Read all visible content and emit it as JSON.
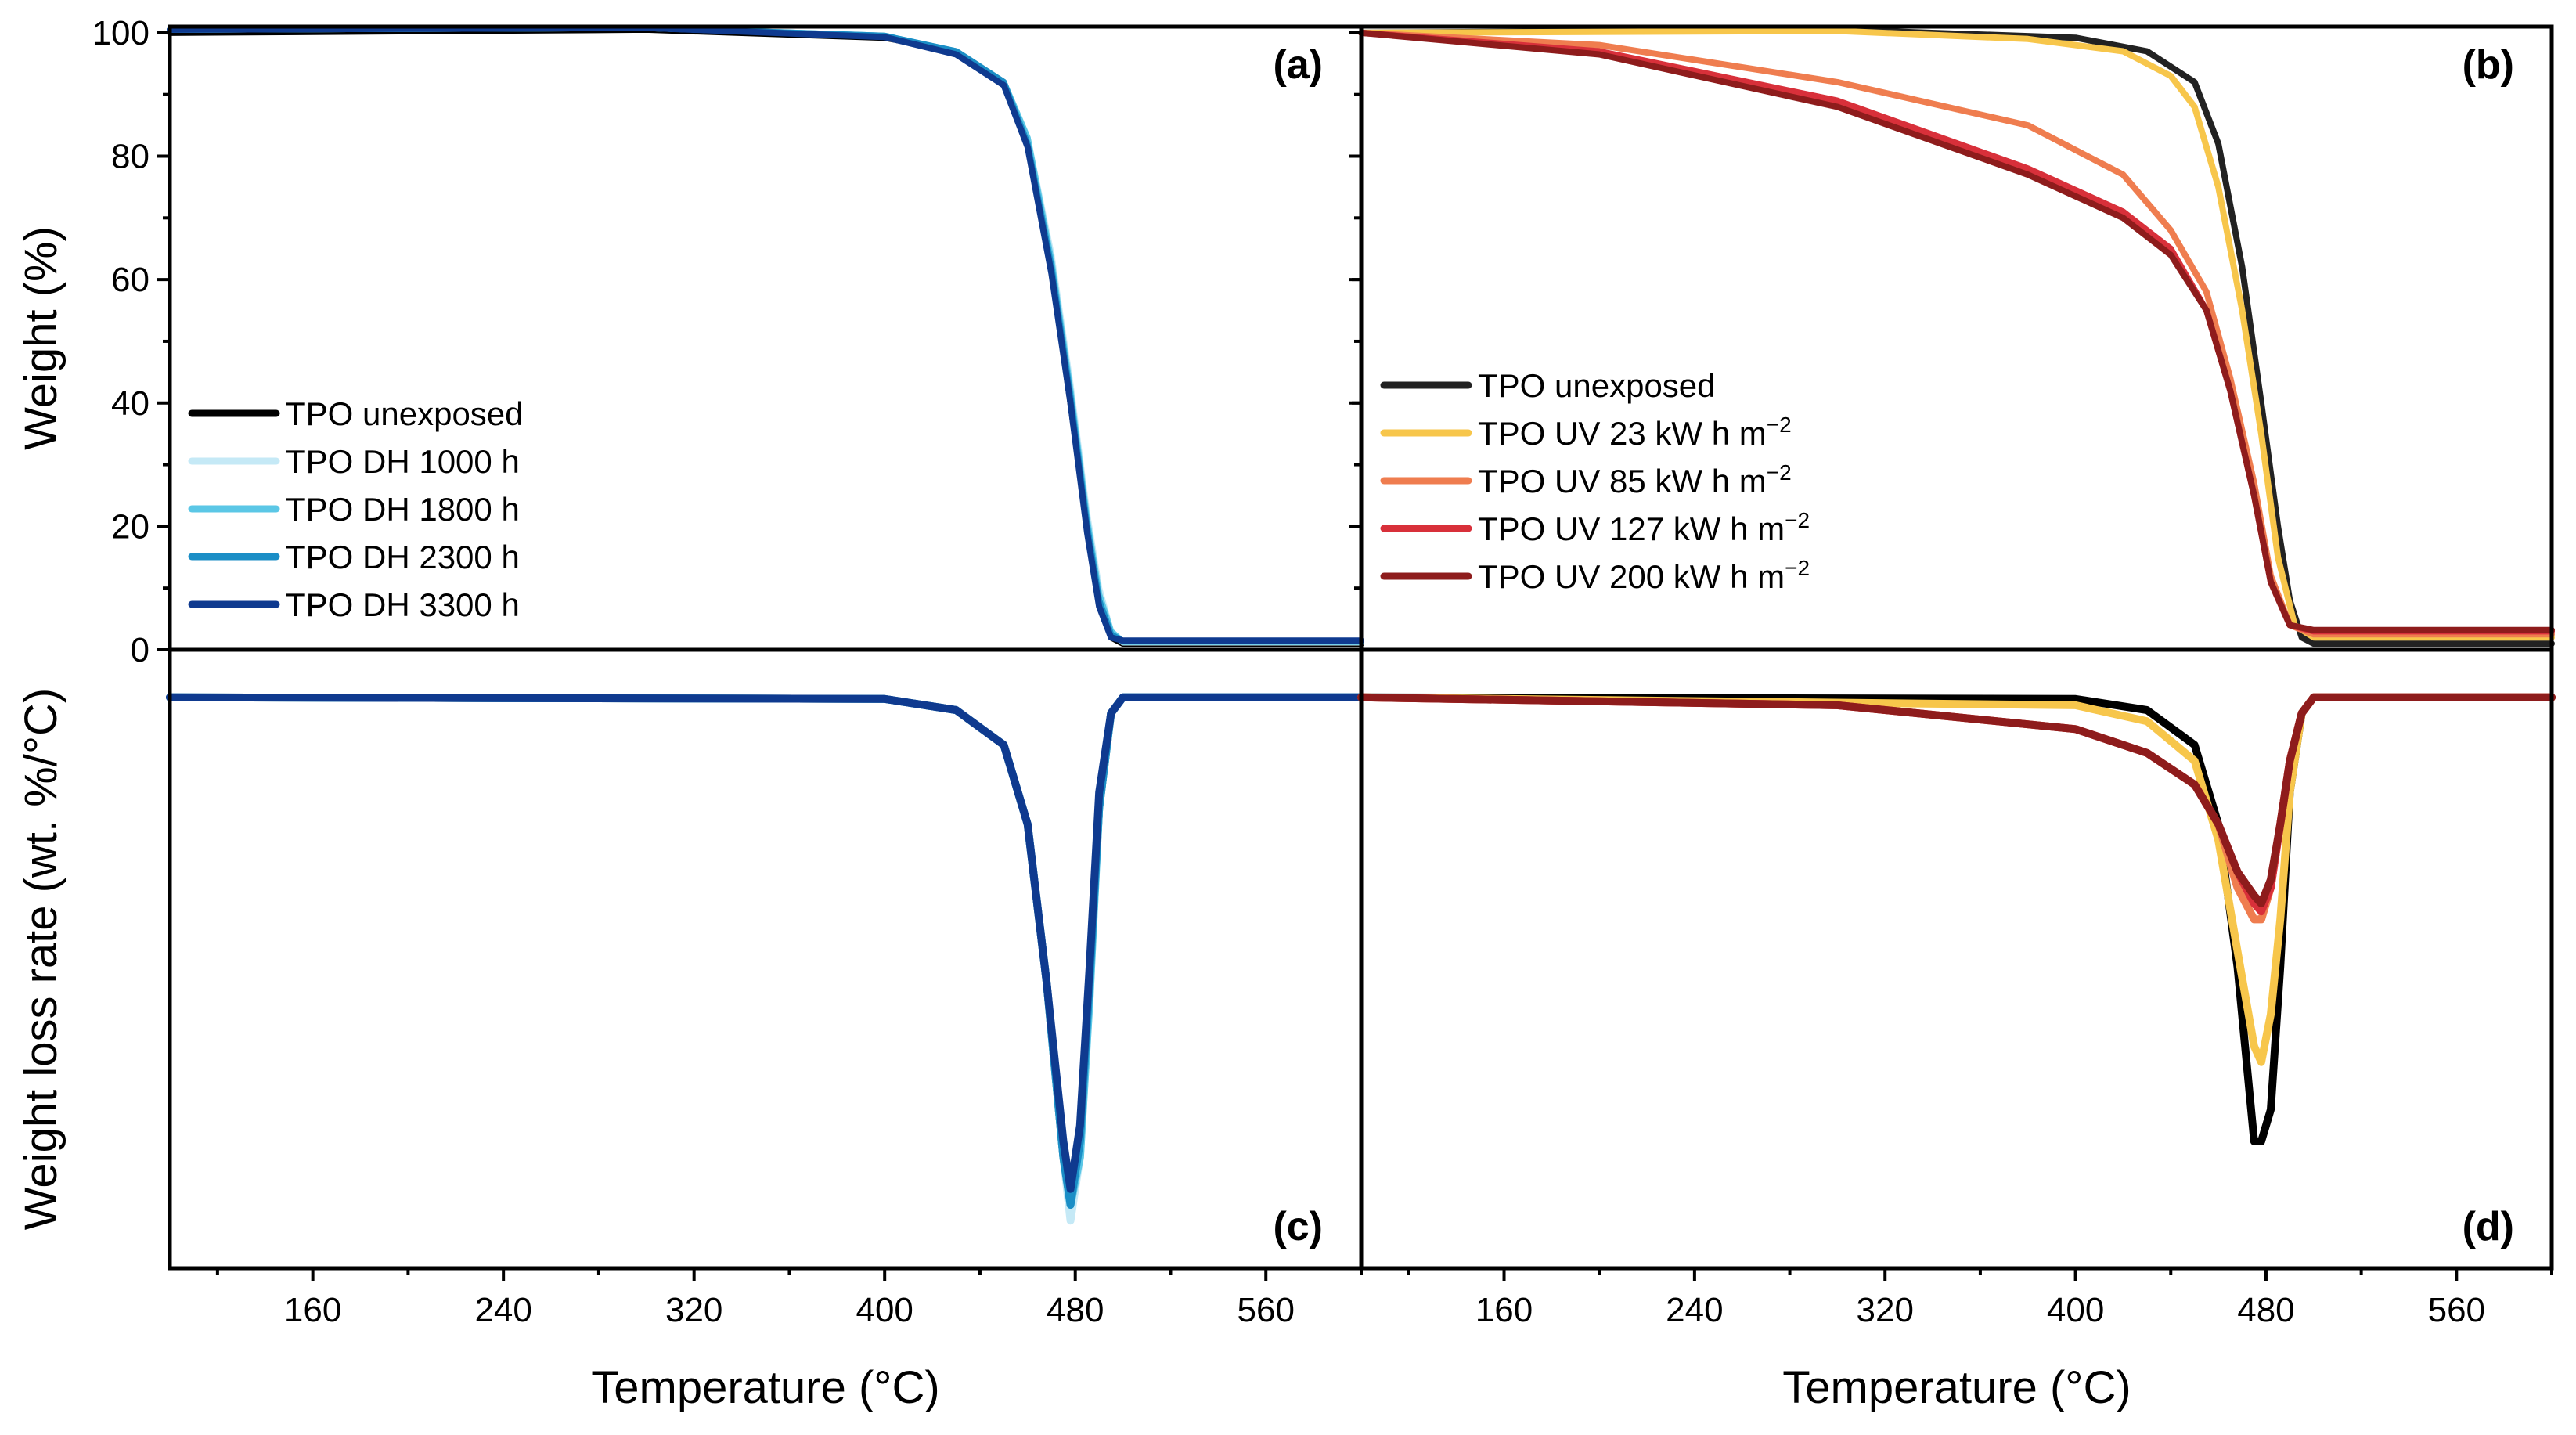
{
  "chart_data": [
    {
      "panel": "(a)",
      "type": "line",
      "xlabel": "Temperature (°C)",
      "ylabel": "Weight (%)",
      "xlim": [
        100,
        600
      ],
      "ylim": [
        0,
        101
      ],
      "xticks": [
        160,
        240,
        320,
        400,
        480,
        560
      ],
      "yticks": [
        0,
        20,
        40,
        60,
        80,
        100
      ],
      "legend_position": "middle-left",
      "grid": false,
      "series": [
        {
          "name": "TPO unexposed",
          "color": "#000000",
          "x": [
            100,
            300,
            400,
            430,
            450,
            460,
            470,
            478,
            485,
            490,
            495,
            500,
            600
          ],
          "y": [
            100,
            100.5,
            99.2,
            97,
            92,
            82,
            62,
            40,
            20,
            8,
            2,
            1,
            1
          ]
        },
        {
          "name": "TPO DH 1000 h",
          "color": "#c5e9f6",
          "x": [
            100,
            300,
            400,
            430,
            450,
            460,
            470,
            478,
            485,
            490,
            495,
            500,
            600
          ],
          "y": [
            100.5,
            100.8,
            99.5,
            97,
            92,
            83,
            64,
            43,
            22,
            10,
            3,
            1.2,
            1.2
          ]
        },
        {
          "name": "TPO DH 1800 h",
          "color": "#5bc7e6",
          "x": [
            100,
            300,
            400,
            430,
            450,
            460,
            470,
            478,
            485,
            490,
            495,
            500,
            600
          ],
          "y": [
            100.5,
            100.8,
            99.5,
            97,
            92,
            83,
            63,
            42,
            21,
            9,
            3,
            1.3,
            1.3
          ]
        },
        {
          "name": "TPO DH 2300 h",
          "color": "#1b8ec6",
          "x": [
            100,
            300,
            400,
            430,
            450,
            460,
            470,
            478,
            485,
            490,
            495,
            500,
            600
          ],
          "y": [
            100.5,
            100.8,
            99.5,
            97,
            92,
            82,
            62,
            41,
            20,
            8,
            2.5,
            1.4,
            1.4
          ]
        },
        {
          "name": "TPO DH 3300 h",
          "color": "#0f3a8f",
          "x": [
            100,
            300,
            400,
            430,
            450,
            460,
            470,
            478,
            485,
            490,
            495,
            500,
            600
          ],
          "y": [
            100.5,
            100.8,
            99.3,
            96.5,
            91.5,
            81.5,
            61,
            40,
            19,
            7,
            2,
            1.5,
            1.5
          ]
        }
      ]
    },
    {
      "panel": "(b)",
      "type": "line",
      "xlabel": "Temperature (°C)",
      "ylabel": "Weight (%)",
      "xlim": [
        100,
        600
      ],
      "ylim": [
        0,
        101
      ],
      "xticks": [
        160,
        240,
        320,
        400,
        480,
        560
      ],
      "yticks": [
        0,
        20,
        40,
        60,
        80,
        100
      ],
      "legend_position": "middle-left",
      "grid": false,
      "series": [
        {
          "name": "TPO unexposed",
          "color": "#222222",
          "x": [
            100,
            300,
            400,
            430,
            450,
            460,
            470,
            478,
            485,
            490,
            495,
            500,
            600
          ],
          "y": [
            100,
            100.5,
            99.2,
            97,
            92,
            82,
            62,
            40,
            20,
            8,
            2,
            1,
            1
          ]
        },
        {
          "name": "TPO UV 23 kW h m",
          "sup": "−2",
          "color": "#f7c64b",
          "x": [
            100,
            300,
            380,
            420,
            440,
            450,
            460,
            470,
            478,
            485,
            492,
            500,
            600
          ],
          "y": [
            100,
            100.3,
            99,
            97,
            93,
            88,
            75,
            55,
            35,
            15,
            4,
            2,
            2
          ]
        },
        {
          "name": "TPO UV 85 kW h m",
          "sup": "−2",
          "color": "#ef7d4f",
          "x": [
            100,
            200,
            300,
            380,
            420,
            440,
            455,
            465,
            475,
            482,
            490,
            500,
            600
          ],
          "y": [
            100,
            98,
            92,
            85,
            77,
            68,
            58,
            44,
            27,
            12,
            4,
            2.5,
            2.5
          ]
        },
        {
          "name": "TPO UV 127 kW h m",
          "sup": "−2",
          "color": "#d8303a",
          "x": [
            100,
            200,
            300,
            380,
            420,
            440,
            455,
            465,
            475,
            482,
            490,
            500,
            600
          ],
          "y": [
            100,
            97,
            89,
            78,
            71,
            65,
            55,
            42,
            25,
            11,
            4,
            3,
            3
          ]
        },
        {
          "name": "TPO UV 200 kW h m",
          "sup": "−2",
          "color": "#8e1c1c",
          "x": [
            100,
            200,
            300,
            380,
            420,
            440,
            455,
            465,
            475,
            482,
            490,
            500,
            600
          ],
          "y": [
            100,
            96.5,
            88,
            77,
            70,
            64,
            55,
            42,
            25,
            11,
            4,
            3.2,
            3.2
          ]
        }
      ]
    },
    {
      "panel": "(c)",
      "type": "line",
      "xlabel": "Temperature (°C)",
      "ylabel": "Weight loss rate (wt. %/°C)",
      "xlim": [
        100,
        600
      ],
      "ylim": [
        -3.6,
        0.3
      ],
      "xticks": [
        160,
        240,
        320,
        400,
        480,
        560
      ],
      "yticks": [],
      "grid": false,
      "series": [
        {
          "name": "TPO unexposed",
          "color": "#000000",
          "x": [
            100,
            400,
            430,
            450,
            460,
            468,
            475,
            478,
            482,
            486,
            490,
            495,
            500,
            600
          ],
          "y": [
            0,
            -0.01,
            -0.08,
            -0.3,
            -0.8,
            -1.8,
            -2.9,
            -3.2,
            -2.8,
            -1.8,
            -0.7,
            -0.1,
            0,
            0
          ]
        },
        {
          "name": "TPO DH 1000 h",
          "color": "#c5e9f6",
          "x": [
            100,
            400,
            430,
            450,
            460,
            468,
            475,
            478,
            482,
            486,
            490,
            495,
            500,
            600
          ],
          "y": [
            0,
            -0.01,
            -0.08,
            -0.3,
            -0.8,
            -1.8,
            -2.9,
            -3.3,
            -2.9,
            -1.9,
            -0.7,
            -0.1,
            0,
            0
          ]
        },
        {
          "name": "TPO DH 1800 h",
          "color": "#5bc7e6",
          "x": [
            100,
            400,
            430,
            450,
            460,
            468,
            475,
            478,
            482,
            486,
            490,
            495,
            500,
            600
          ],
          "y": [
            0,
            -0.01,
            -0.08,
            -0.3,
            -0.8,
            -1.8,
            -2.9,
            -3.2,
            -2.9,
            -1.9,
            -0.7,
            -0.1,
            0,
            0
          ]
        },
        {
          "name": "TPO DH 2300 h",
          "color": "#1b8ec6",
          "x": [
            100,
            400,
            430,
            450,
            460,
            468,
            475,
            478,
            482,
            486,
            490,
            495,
            500,
            600
          ],
          "y": [
            0,
            -0.01,
            -0.08,
            -0.3,
            -0.8,
            -1.8,
            -2.9,
            -3.2,
            -2.8,
            -1.8,
            -0.7,
            -0.1,
            0,
            0
          ]
        },
        {
          "name": "TPO DH 3300 h",
          "color": "#0f3a8f",
          "x": [
            100,
            400,
            430,
            450,
            460,
            468,
            475,
            478,
            482,
            486,
            490,
            495,
            500,
            600
          ],
          "y": [
            0,
            -0.01,
            -0.08,
            -0.3,
            -0.8,
            -1.8,
            -2.8,
            -3.1,
            -2.7,
            -1.7,
            -0.6,
            -0.1,
            0,
            0
          ]
        }
      ]
    },
    {
      "panel": "(d)",
      "type": "line",
      "xlabel": "Temperature (°C)",
      "ylabel": "Weight loss rate (wt. %/°C)",
      "xlim": [
        100,
        600
      ],
      "ylim": [
        -3.6,
        0.3
      ],
      "xticks": [
        160,
        240,
        320,
        400,
        480,
        560
      ],
      "yticks": [],
      "grid": false,
      "series": [
        {
          "name": "TPO unexposed",
          "color": "#000000",
          "x": [
            100,
            400,
            430,
            450,
            460,
            468,
            475,
            478,
            482,
            486,
            490,
            495,
            500,
            600
          ],
          "y": [
            0,
            -0.01,
            -0.08,
            -0.3,
            -0.8,
            -1.7,
            -2.8,
            -2.8,
            -2.6,
            -1.7,
            -0.6,
            -0.1,
            0,
            0
          ]
        },
        {
          "name": "TPO UV 23 kW h m",
          "sup": "−2",
          "color": "#f7c64b",
          "x": [
            100,
            400,
            430,
            450,
            460,
            468,
            475,
            478,
            482,
            486,
            490,
            495,
            500,
            600
          ],
          "y": [
            0,
            -0.05,
            -0.15,
            -0.4,
            -0.9,
            -1.6,
            -2.2,
            -2.3,
            -2.0,
            -1.4,
            -0.6,
            -0.1,
            0,
            0
          ]
        },
        {
          "name": "TPO UV 85 kW h m",
          "sup": "−2",
          "color": "#ef7d4f",
          "x": [
            100,
            300,
            400,
            430,
            450,
            460,
            468,
            475,
            478,
            482,
            486,
            490,
            495,
            500,
            600
          ],
          "y": [
            0,
            -0.05,
            -0.2,
            -0.35,
            -0.55,
            -0.8,
            -1.2,
            -1.4,
            -1.4,
            -1.2,
            -0.8,
            -0.4,
            -0.1,
            0,
            0
          ]
        },
        {
          "name": "TPO UV 127 kW h m",
          "sup": "−2",
          "color": "#d8303a",
          "x": [
            100,
            300,
            400,
            430,
            450,
            460,
            468,
            475,
            478,
            482,
            486,
            490,
            495,
            500,
            600
          ],
          "y": [
            0,
            -0.05,
            -0.2,
            -0.35,
            -0.55,
            -0.8,
            -1.1,
            -1.3,
            -1.35,
            -1.2,
            -0.8,
            -0.4,
            -0.1,
            0,
            0
          ]
        },
        {
          "name": "TPO UV 200 kW h m",
          "sup": "−2",
          "color": "#8e1c1c",
          "x": [
            100,
            300,
            400,
            430,
            450,
            460,
            468,
            475,
            478,
            482,
            486,
            490,
            495,
            500,
            600
          ],
          "y": [
            0,
            -0.05,
            -0.2,
            -0.35,
            -0.55,
            -0.8,
            -1.1,
            -1.25,
            -1.3,
            -1.15,
            -0.8,
            -0.4,
            -0.1,
            0,
            0
          ]
        }
      ]
    }
  ]
}
